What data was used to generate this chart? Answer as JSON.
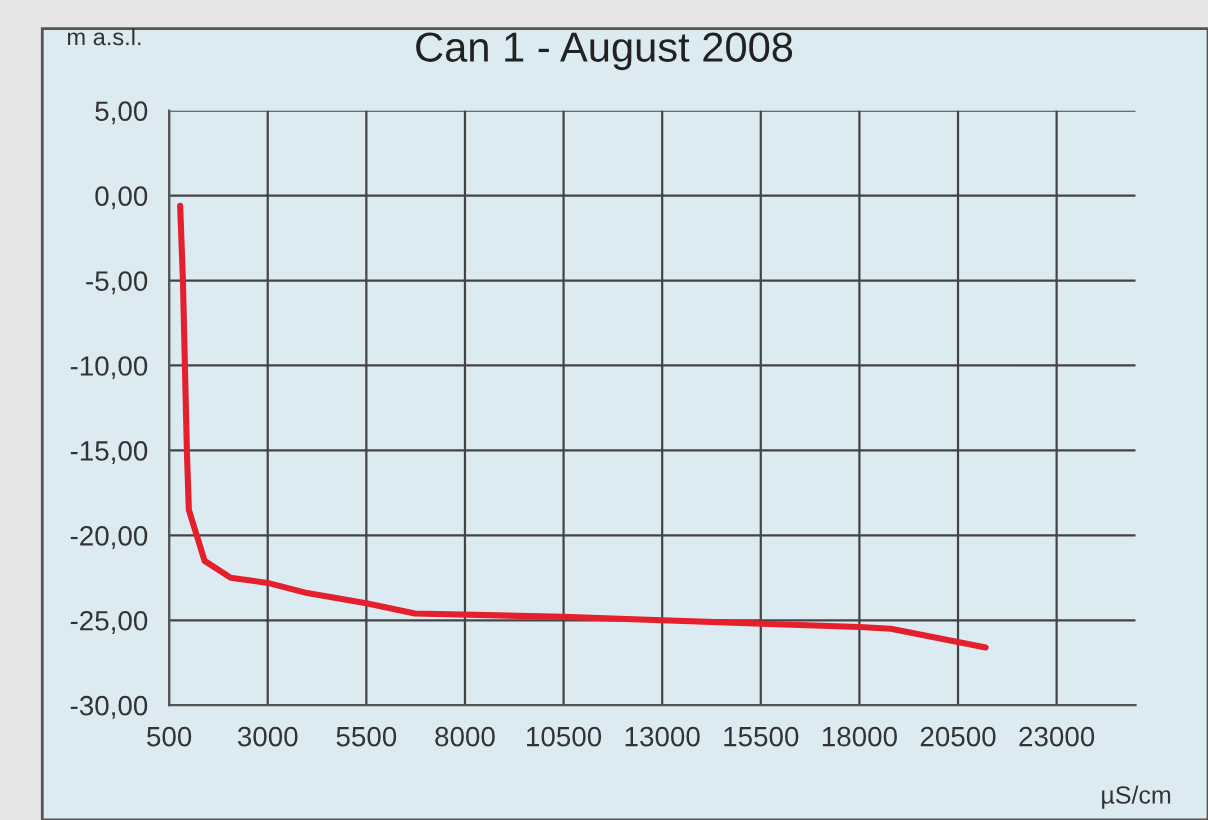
{
  "chart_data": {
    "type": "line",
    "title": "Can 1 - August 2008",
    "xlabel": "µS/cm",
    "ylabel": "m a.s.l.",
    "series": [
      {
        "color": "#e3202b",
        "x": [
          780,
          850,
          900,
          950,
          1000,
          1200,
          1400,
          2060,
          3000,
          4000,
          5500,
          6730,
          10500,
          13000,
          15500,
          18000,
          18800,
          21200
        ],
        "values": [
          -0.6,
          -5,
          -10,
          -15,
          -18.5,
          -20,
          -21.5,
          -22.5,
          -22.8,
          -23.4,
          -24,
          -24.6,
          -24.8,
          -25,
          -25.2,
          -25.4,
          -25.5,
          -26.6
        ]
      }
    ],
    "xlim": [
      500,
      25000
    ],
    "xticks": [
      500,
      3000,
      5500,
      8000,
      10500,
      13000,
      15500,
      18000,
      20500,
      23000
    ],
    "ylim": [
      -30,
      5
    ],
    "yticks": [
      {
        "value": 5,
        "label": "5,00"
      },
      {
        "value": 0,
        "label": "0,00"
      },
      {
        "value": -5,
        "label": "-5,00"
      },
      {
        "value": -10,
        "label": "-10,00"
      },
      {
        "value": -15,
        "label": "-15,00"
      },
      {
        "value": -20,
        "label": "-20,00"
      },
      {
        "value": -25,
        "label": "-25,00"
      },
      {
        "value": -30,
        "label": "-30,00"
      }
    ],
    "grid": true,
    "marker": "none",
    "line_style": "solid"
  }
}
